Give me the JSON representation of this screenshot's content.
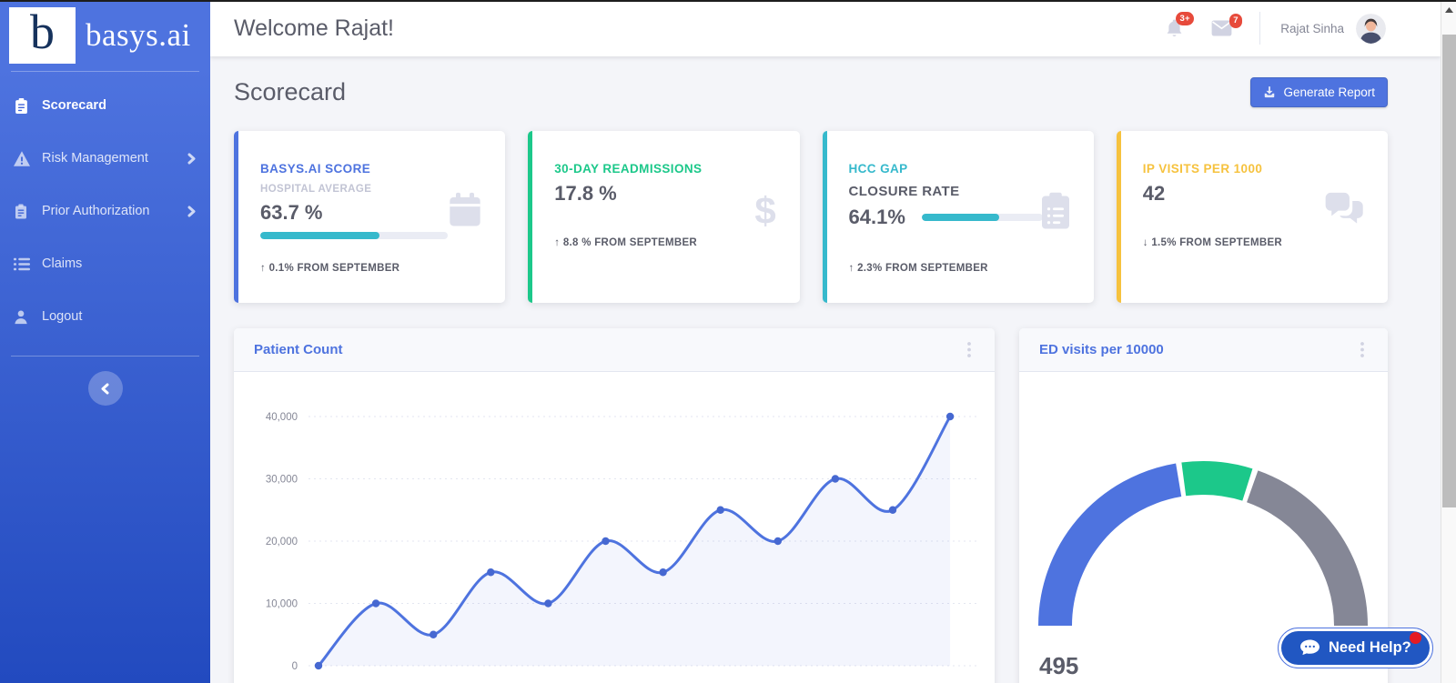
{
  "brand": {
    "initial": "b",
    "name": "basys.ai"
  },
  "sidebar": {
    "items": [
      {
        "label": "Scorecard",
        "icon": "clipboard-icon",
        "active": true,
        "expandable": false
      },
      {
        "label": "Risk Management",
        "icon": "warning-triangle-icon",
        "active": false,
        "expandable": true
      },
      {
        "label": "Prior Authorization",
        "icon": "clipboard-icon",
        "active": false,
        "expandable": true
      },
      {
        "label": "Claims",
        "icon": "list-icon",
        "active": false,
        "expandable": false
      },
      {
        "label": "Logout",
        "icon": "user-icon",
        "active": false,
        "expandable": false
      }
    ]
  },
  "topbar": {
    "welcome": "Welcome Rajat!",
    "bell_badge": "3+",
    "mail_badge": "7",
    "user_name": "Rajat Sinha"
  },
  "page": {
    "title": "Scorecard",
    "generate_report": "Generate Report"
  },
  "stat_cards": [
    {
      "title": "BASYS.AI SCORE",
      "subtitle": "HOSPITAL AVERAGE",
      "value": "63.7 %",
      "progress_pct": 63.7,
      "arrow": "↑",
      "delta": "0.1% FROM SEPTEMBER",
      "accent": "#4e73df",
      "icon": "calendar-icon"
    },
    {
      "title": "30-DAY READMISSIONS",
      "value": "17.8 %",
      "arrow": "↑",
      "delta": "8.8 % FROM SEPTEMBER",
      "accent": "#1cc88a",
      "icon": "dollar-icon"
    },
    {
      "title": "HCC GAP",
      "subtitle": "CLOSURE RATE",
      "value": "64.1%",
      "progress_pct": 64.1,
      "arrow": "↑",
      "delta": "2.3% FROM SEPTEMBER",
      "accent": "#36b9cc",
      "icon": "clipboard-list-icon"
    },
    {
      "title": "IP VISITS PER 1000",
      "value": "42",
      "arrow": "↓",
      "delta": "1.5% FROM SEPTEMBER",
      "accent": "#f6c23e",
      "icon": "chat-icon"
    }
  ],
  "chart_cards": {
    "patient_count": {
      "title": "Patient Count",
      "menu_icon": "kebab-icon"
    },
    "ed_visits": {
      "title": "ED visits per 10000",
      "menu_icon": "kebab-icon",
      "value_label": "495"
    }
  },
  "chart_data": [
    {
      "type": "line",
      "title": "Patient Count",
      "values": [
        0,
        10000,
        5000,
        15000,
        10000,
        20000,
        15000,
        25000,
        20000,
        30000,
        25000,
        40000
      ],
      "ytick_labels_top_down": [
        "40,000",
        "30,000",
        "20,000",
        "10,000",
        "0"
      ],
      "ylim": [
        0,
        40000
      ],
      "x_labels_visible": false,
      "grid": "dotted-horizontal",
      "line_color": "#4e73df",
      "point_color": "#4668d1",
      "fill_color": "rgba(78,115,223,0.07)",
      "tick_color": "#858796",
      "grid_color": "#e3e6f0"
    },
    {
      "type": "gauge",
      "title": "ED visits per 10000",
      "value": 495,
      "value_label": "495",
      "segments": [
        {
          "name": "low",
          "color": "#4e73df",
          "start_deg": 180,
          "end_deg": 99.5
        },
        {
          "name": "target",
          "color": "#1cc88a",
          "start_deg": 97.5,
          "end_deg": 72.5
        },
        {
          "name": "high",
          "color": "#858796",
          "start_deg": 70.5,
          "end_deg": 0
        }
      ]
    }
  ],
  "help_button": {
    "label": "Need Help?",
    "background": "#2157c2",
    "dot_color": "#e51c23"
  },
  "colors": {
    "sidebar_gradient_top": "#4e73df",
    "sidebar_gradient_bottom": "#224abf",
    "primary": "#4e73df",
    "success": "#1cc88a",
    "info": "#36b9cc",
    "warning": "#f6c23e",
    "text_dark": "#5a5c69",
    "text_muted": "#858796",
    "badge_red": "#e74a3b",
    "icon_light": "#dddfeb",
    "progress_track": "#eaecf4",
    "content_bg": "#f4f5f9"
  }
}
